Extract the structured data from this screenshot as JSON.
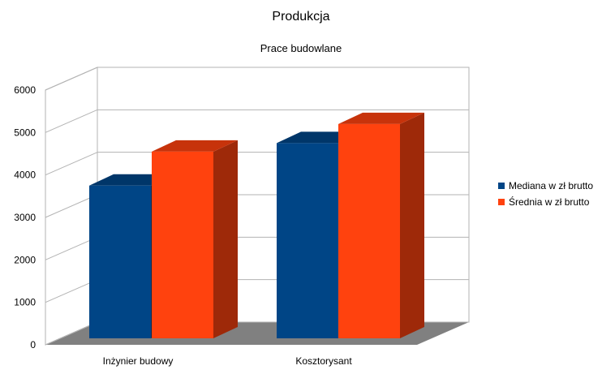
{
  "chart_data": {
    "type": "bar",
    "title": "Produkcja",
    "subtitle": "Prace budowlane",
    "categories": [
      "Inżynier budowy",
      "Kosztorysant"
    ],
    "series": [
      {
        "name": "Mediana w zł brutto",
        "values": [
          3750,
          4750
        ],
        "color": "#004586"
      },
      {
        "name": "Średnia w zł brutto",
        "values": [
          4550,
          5200
        ],
        "color": "#ff420e"
      }
    ],
    "xlabel": "",
    "ylabel": "",
    "ylim": [
      0,
      6000
    ],
    "yticks": [
      "0",
      "1000",
      "2000",
      "3000",
      "4000",
      "5000",
      "6000"
    ],
    "grid": true,
    "legend": "right",
    "style": "3d"
  }
}
